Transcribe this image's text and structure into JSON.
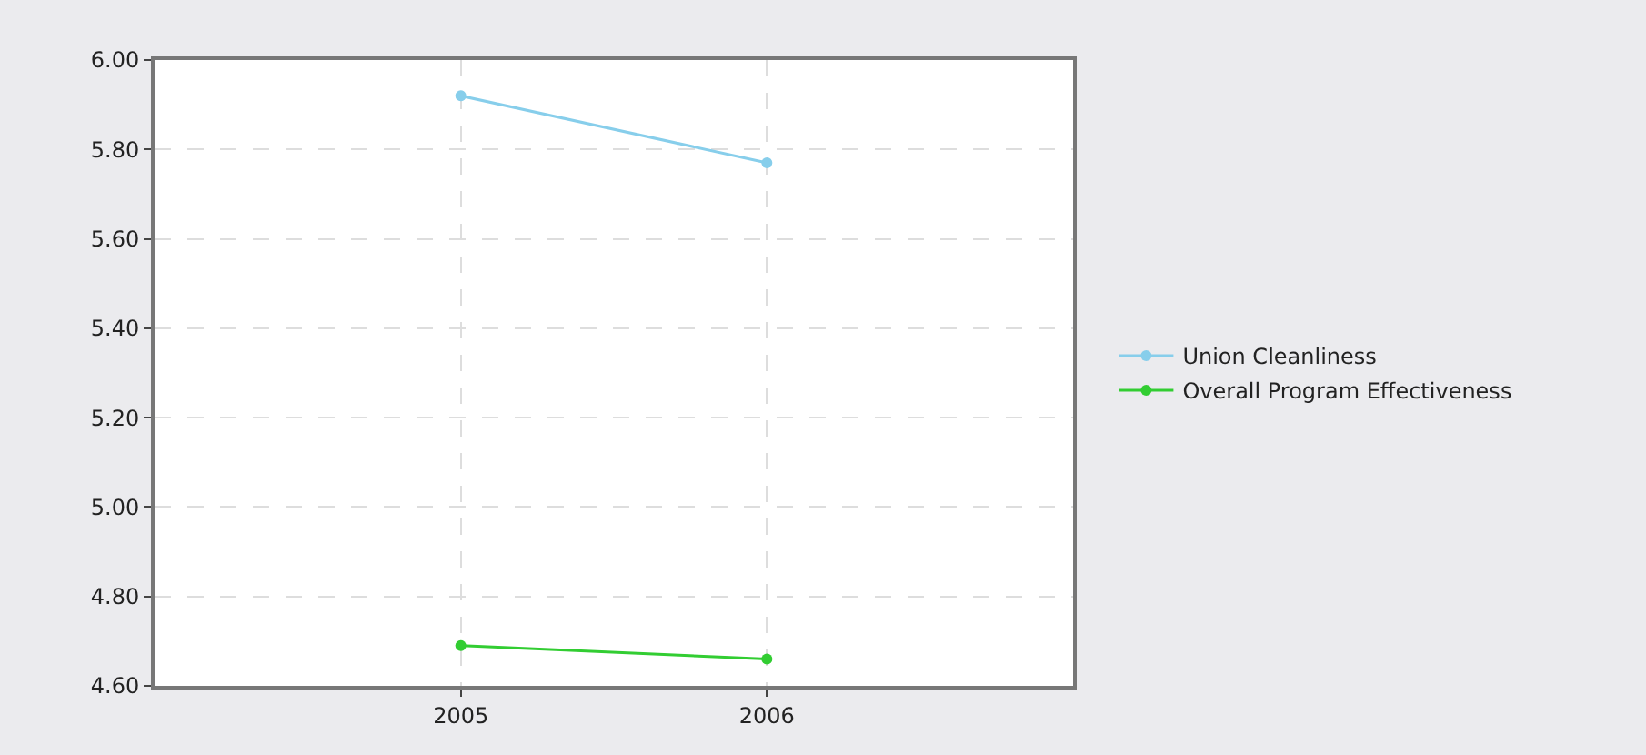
{
  "chart_data": {
    "type": "line",
    "categories": [
      "2005",
      "2006"
    ],
    "series": [
      {
        "name": "Union Cleanliness",
        "color": "#87ceeb",
        "values": [
          5.92,
          5.77
        ]
      },
      {
        "name": "Overall Program Effectiveness",
        "color": "#32cd32",
        "values": [
          4.69,
          4.66
        ]
      }
    ],
    "ylim": [
      4.6,
      6.0
    ],
    "yticks": [
      {
        "value": 4.6,
        "label": "4.60"
      },
      {
        "value": 4.8,
        "label": "4.80"
      },
      {
        "value": 5.0,
        "label": "5.00"
      },
      {
        "value": 5.2,
        "label": "5.20"
      },
      {
        "value": 5.4,
        "label": "5.40"
      },
      {
        "value": 5.6,
        "label": "5.60"
      },
      {
        "value": 5.8,
        "label": "5.80"
      },
      {
        "value": 6.0,
        "label": "6.00"
      }
    ],
    "grid": true,
    "legend": "right",
    "marker": "circle",
    "line_style": "solid"
  }
}
